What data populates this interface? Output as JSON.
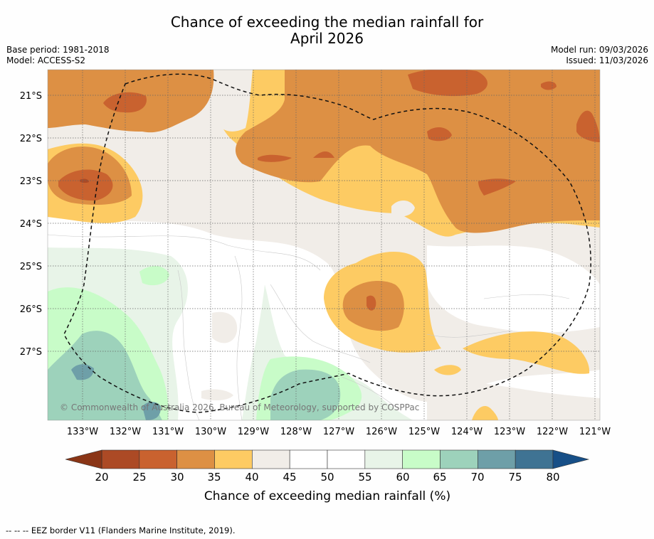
{
  "title": {
    "line1": "Chance of exceeding the median rainfall for",
    "line2": "April 2026"
  },
  "meta": {
    "base_period": "Base period: 1981-2018",
    "model": "Model: ACCESS-S2",
    "model_run": "Model run: 09/03/2026",
    "issued": "Issued: 11/03/2026"
  },
  "map": {
    "lat_labels": [
      "21°S",
      "22°S",
      "23°S",
      "24°S",
      "25°S",
      "26°S",
      "27°S"
    ],
    "lon_labels": [
      "133°W",
      "132°W",
      "131°W",
      "130°W",
      "129°W",
      "128°W",
      "127°W",
      "126°W",
      "125°W",
      "124°W",
      "123°W",
      "122°W",
      "121°W"
    ],
    "extent": {
      "lon_min": -133.8,
      "lon_max": -120.9,
      "lat_min": -28.6,
      "lat_max": -20.4
    },
    "copyright": "© Commonwealth of Australia 2026, Bureau of Meteorology, supported by COSPPac",
    "eez_border_style": "dashed"
  },
  "colorbar": {
    "ticks": [
      "20",
      "25",
      "30",
      "35",
      "40",
      "45",
      "50",
      "55",
      "60",
      "65",
      "70",
      "75",
      "80"
    ],
    "colors": [
      "#ac4a25",
      "#c9622f",
      "#dd9044",
      "#fdcb63",
      "#f1ede8",
      "#ffffff",
      "#ffffff",
      "#e8f4e8",
      "#c8fcc8",
      "#9dd2bb",
      "#6e9fa8",
      "#3f7393"
    ],
    "under_color": "#8a3516",
    "over_color": "#174f87",
    "label": "Chance of exceeding median rainfall (%)"
  },
  "footer": "--  --  -- EEZ border V11 (Flanders Marine Institute, 2019)."
}
